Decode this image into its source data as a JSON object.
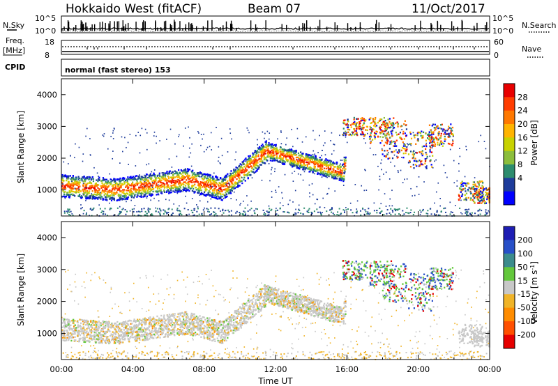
{
  "header": {
    "station": "Hokkaido West (fitACF)",
    "beam": "Beam 07",
    "date": "11/Oct/2017"
  },
  "noise_panel": {
    "left_label": "N.Sky",
    "right_label": "N.Search",
    "left_ticks": [
      "10^5",
      "10^0"
    ],
    "right_ticks": [
      "10^5",
      "10^0"
    ]
  },
  "freq_panel": {
    "left_label_line1": "Freq.",
    "left_label_line2": "[MHz]",
    "right_label": "Nave",
    "left_ticks": [
      "18",
      "8"
    ],
    "right_ticks": [
      "60",
      "0"
    ]
  },
  "cpid_panel": {
    "label": "CPID",
    "text": "normal (fast stereo) 153"
  },
  "chart_data": [
    {
      "type": "heatmap",
      "panel": "power",
      "ylabel": "Slant Range [km]",
      "xlabel": "Time UT",
      "y_ticks": [
        1000,
        2000,
        3000,
        4000
      ],
      "ylim": [
        180,
        4500
      ],
      "x_ticks": [
        "00:00",
        "04:00",
        "08:00",
        "12:00",
        "16:00",
        "20:00",
        "00:00"
      ],
      "xlim_hours": [
        0,
        24
      ],
      "colorbar_label": "Power [dB]",
      "colorbar_ticks": [
        "28",
        "24",
        "20",
        "16",
        "12",
        "8",
        "4"
      ],
      "colorbar_colors": [
        "#e80000",
        "#ff3c00",
        "#ff7800",
        "#ffb400",
        "#c8d200",
        "#8cbe3c",
        "#2d8c6e",
        "#1e3c9b",
        "#0000ff"
      ]
    },
    {
      "type": "heatmap",
      "panel": "velocity",
      "ylabel": "Slant Range [km]",
      "xlabel": "Time UT",
      "y_ticks": [
        1000,
        2000,
        3000,
        4000
      ],
      "ylim": [
        180,
        4500
      ],
      "x_ticks": [
        "00:00",
        "04:00",
        "08:00",
        "12:00",
        "16:00",
        "20:00",
        "00:00"
      ],
      "xlim_hours": [
        0,
        24
      ],
      "colorbar_label": "Velocity [m s^-1]",
      "colorbar_ticks": [
        "200",
        "100",
        "50",
        "15",
        "-15",
        "-50",
        "-100",
        "-200"
      ],
      "colorbar_colors": [
        "#1e1eb4",
        "#2850c8",
        "#3c8c8c",
        "#64c83c",
        "#c8c8c8",
        "#f0b428",
        "#ff8c00",
        "#ff5000",
        "#e60000"
      ]
    }
  ],
  "x_axis": {
    "ticks": [
      "00:00",
      "04:00",
      "08:00",
      "12:00",
      "16:00",
      "20:00",
      "00:00"
    ],
    "label": "Time UT"
  }
}
